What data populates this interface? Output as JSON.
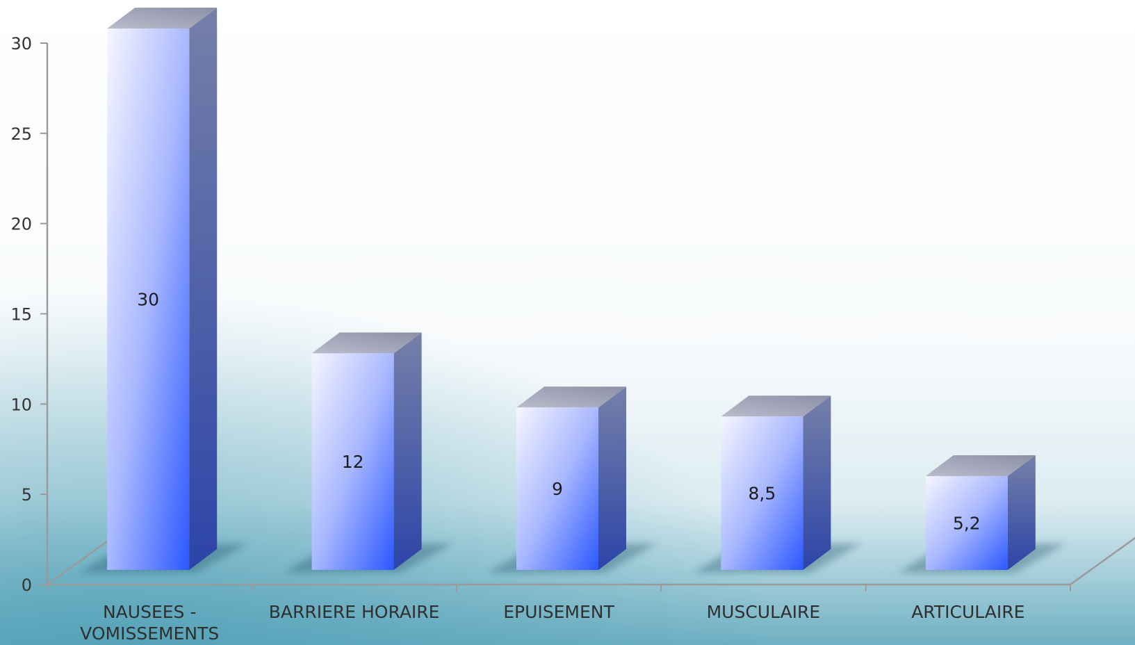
{
  "chart_data": {
    "type": "bar",
    "categories": [
      [
        "NAUSEES -",
        "VOMISSEMENTS"
      ],
      [
        "BARRIERE HORAIRE"
      ],
      [
        "EPUISEMENT"
      ],
      [
        "MUSCULAIRE"
      ],
      [
        "ARTICULAIRE"
      ]
    ],
    "values": [
      30,
      12,
      9,
      8.5,
      5.2
    ],
    "value_labels": [
      "30",
      "12",
      "9",
      "8,5",
      "5,2"
    ],
    "yticks": [
      "0",
      "5",
      "10",
      "15",
      "20",
      "25",
      "30"
    ],
    "ylim": [
      0,
      30
    ],
    "title": "",
    "xlabel": "",
    "ylabel": "",
    "grid": false,
    "legend": "none",
    "style": "3d-column",
    "colors": {
      "bar_light": "#f3f4ff",
      "bar_dark": "#2f5bff",
      "bar_side": "#3f55a8",
      "bar_top": "#a0a4b8",
      "axis": "#9a9a9a",
      "background_top": "#ffffff",
      "background_bottom": "#6fb3c6"
    }
  }
}
